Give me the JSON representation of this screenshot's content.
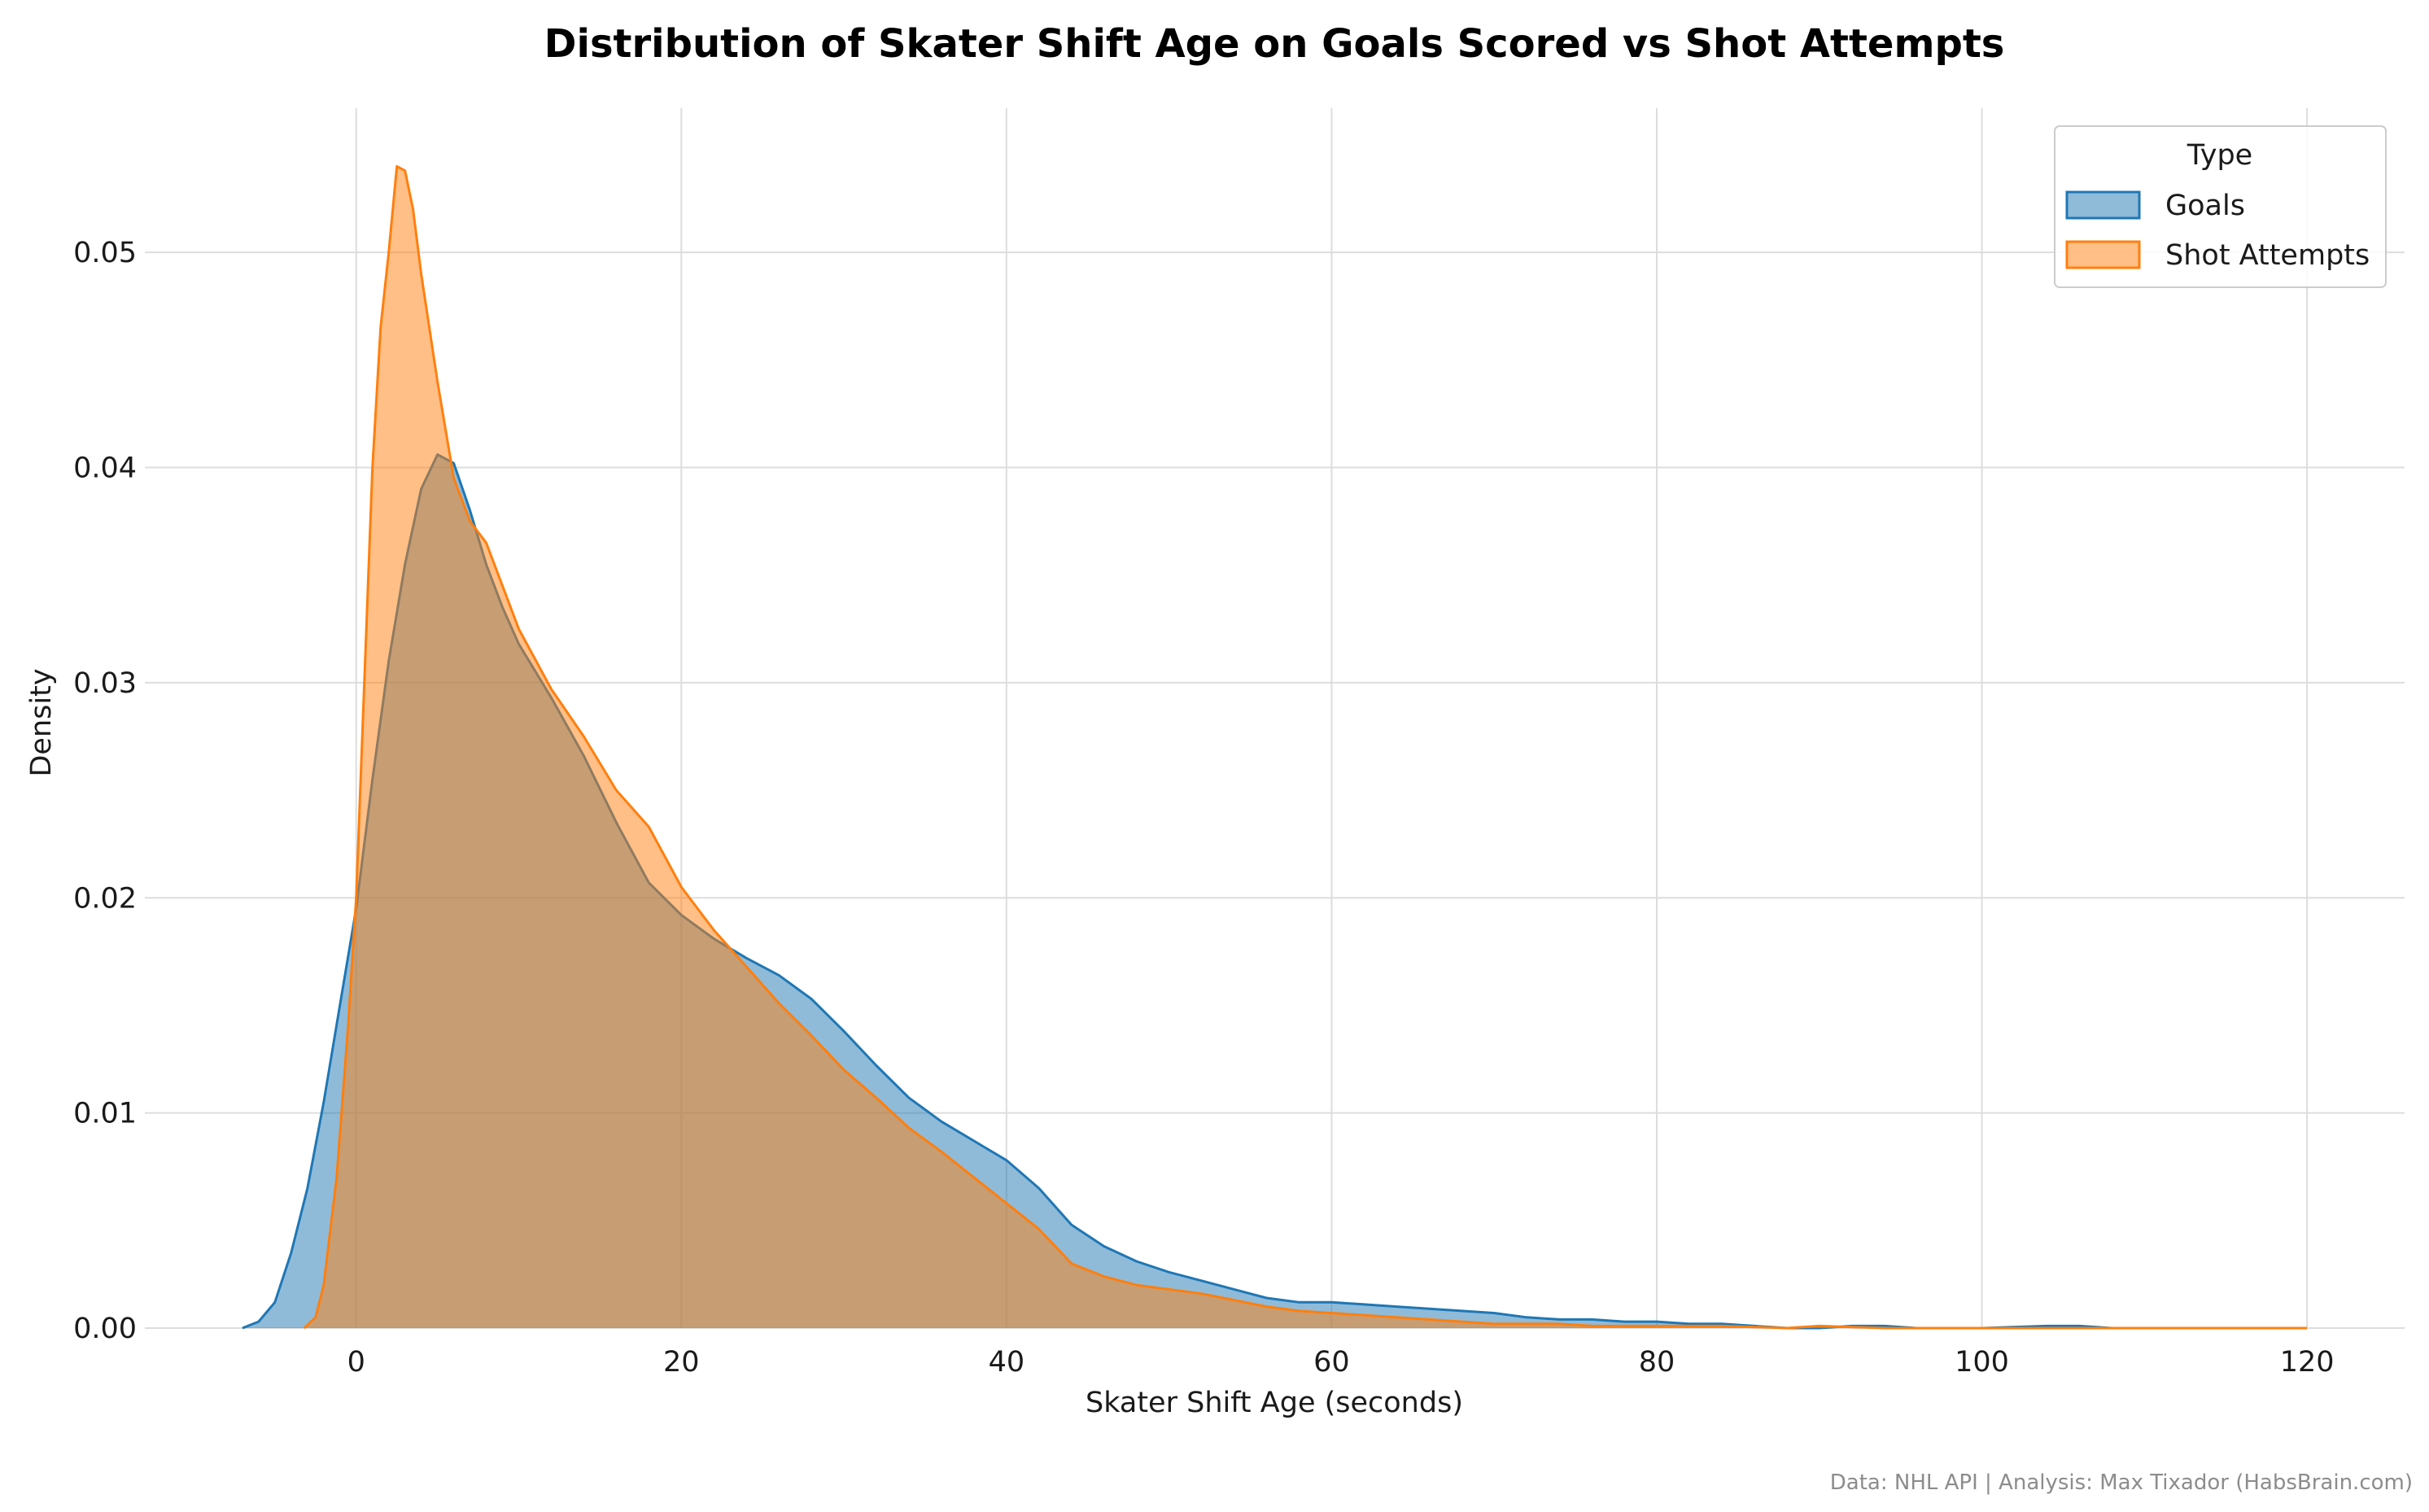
{
  "chart_data": {
    "type": "area",
    "title": "Distribution of Skater Shift Age on Goals Scored vs Shot Attempts",
    "xlabel": "Skater Shift Age (seconds)",
    "ylabel": "Density",
    "xlim": [
      -13,
      126
    ],
    "ylim": [
      0,
      0.0567
    ],
    "x_ticks": [
      0,
      20,
      40,
      60,
      80,
      100,
      120
    ],
    "y_ticks": [
      0.0,
      0.01,
      0.02,
      0.03,
      0.04,
      0.05
    ],
    "x_tick_labels": [
      "0",
      "20",
      "40",
      "60",
      "80",
      "100",
      "120"
    ],
    "y_tick_labels": [
      "0.00",
      "0.01",
      "0.02",
      "0.03",
      "0.04",
      "0.05"
    ],
    "grid": true,
    "legend": {
      "title": "Type",
      "placement": "top-right",
      "entries": [
        "Goals",
        "Shot Attempts"
      ]
    },
    "credit": "Data: NHL API | Analysis: Max Tixador (HabsBrain.com)",
    "series": [
      {
        "name": "Goals",
        "line_color": "#1f77b4",
        "fill_color": "#1f77b4",
        "points": [
          [
            -7,
            0.0
          ],
          [
            -6,
            0.0003
          ],
          [
            -5,
            0.0012
          ],
          [
            -4,
            0.0035
          ],
          [
            -3,
            0.0065
          ],
          [
            -2,
            0.0105
          ],
          [
            -1,
            0.015
          ],
          [
            0,
            0.0195
          ],
          [
            1,
            0.0255
          ],
          [
            2,
            0.031
          ],
          [
            3,
            0.0355
          ],
          [
            4,
            0.039
          ],
          [
            5,
            0.0406
          ],
          [
            6,
            0.0402
          ],
          [
            7,
            0.038
          ],
          [
            8,
            0.0355
          ],
          [
            9,
            0.0335
          ],
          [
            10,
            0.0318
          ],
          [
            12,
            0.0293
          ],
          [
            14,
            0.0266
          ],
          [
            16,
            0.0235
          ],
          [
            18,
            0.0207
          ],
          [
            20,
            0.0192
          ],
          [
            22,
            0.0181
          ],
          [
            24,
            0.0172
          ],
          [
            26,
            0.0164
          ],
          [
            28,
            0.0153
          ],
          [
            30,
            0.0138
          ],
          [
            32,
            0.0122
          ],
          [
            34,
            0.0107
          ],
          [
            36,
            0.0096
          ],
          [
            38,
            0.0087
          ],
          [
            40,
            0.0078
          ],
          [
            42,
            0.0065
          ],
          [
            44,
            0.0048
          ],
          [
            46,
            0.0038
          ],
          [
            48,
            0.0031
          ],
          [
            50,
            0.0026
          ],
          [
            52,
            0.0022
          ],
          [
            54,
            0.0018
          ],
          [
            56,
            0.0014
          ],
          [
            58,
            0.0012
          ],
          [
            60,
            0.0012
          ],
          [
            62,
            0.0011
          ],
          [
            64,
            0.001
          ],
          [
            66,
            0.0009
          ],
          [
            68,
            0.0008
          ],
          [
            70,
            0.0007
          ],
          [
            72,
            0.0005
          ],
          [
            74,
            0.0004
          ],
          [
            76,
            0.0004
          ],
          [
            78,
            0.0003
          ],
          [
            80,
            0.0003
          ],
          [
            82,
            0.0002
          ],
          [
            84,
            0.0002
          ],
          [
            86,
            0.0001
          ],
          [
            88,
            0.0
          ],
          [
            90,
            0.0
          ],
          [
            92,
            0.0001
          ],
          [
            94,
            0.0001
          ],
          [
            96,
            0.0
          ],
          [
            100,
            0.0
          ],
          [
            104,
            0.0001
          ],
          [
            106,
            0.0001
          ],
          [
            108,
            0.0
          ],
          [
            113,
            0.0
          ]
        ]
      },
      {
        "name": "Shot Attempts",
        "line_color": "#ff7f0e",
        "fill_color": "#ff7f0e",
        "points": [
          [
            -3.2,
            0.0
          ],
          [
            -2.5,
            0.0005
          ],
          [
            -2,
            0.002
          ],
          [
            -1.2,
            0.007
          ],
          [
            -0.5,
            0.014
          ],
          [
            0,
            0.02
          ],
          [
            0.5,
            0.03
          ],
          [
            1,
            0.04
          ],
          [
            1.5,
            0.0465
          ],
          [
            2,
            0.05
          ],
          [
            2.5,
            0.054
          ],
          [
            3,
            0.0538
          ],
          [
            3.5,
            0.052
          ],
          [
            4,
            0.049
          ],
          [
            5,
            0.044
          ],
          [
            6,
            0.0395
          ],
          [
            7,
            0.0375
          ],
          [
            8,
            0.0365
          ],
          [
            9,
            0.0345
          ],
          [
            10,
            0.0325
          ],
          [
            12,
            0.0297
          ],
          [
            14,
            0.0275
          ],
          [
            16,
            0.025
          ],
          [
            18,
            0.0233
          ],
          [
            20,
            0.0205
          ],
          [
            22,
            0.0185
          ],
          [
            24,
            0.0168
          ],
          [
            26,
            0.0151
          ],
          [
            28,
            0.0136
          ],
          [
            30,
            0.012
          ],
          [
            32,
            0.0107
          ],
          [
            34,
            0.0093
          ],
          [
            36,
            0.0082
          ],
          [
            38,
            0.007
          ],
          [
            40,
            0.0058
          ],
          [
            42,
            0.0046
          ],
          [
            44,
            0.003
          ],
          [
            46,
            0.0024
          ],
          [
            48,
            0.002
          ],
          [
            50,
            0.0018
          ],
          [
            52,
            0.0016
          ],
          [
            54,
            0.0013
          ],
          [
            56,
            0.001
          ],
          [
            58,
            0.0008
          ],
          [
            60,
            0.0007
          ],
          [
            62,
            0.0006
          ],
          [
            64,
            0.0005
          ],
          [
            66,
            0.0004
          ],
          [
            68,
            0.0003
          ],
          [
            70,
            0.0002
          ],
          [
            72,
            0.0002
          ],
          [
            74,
            0.0002
          ],
          [
            76,
            0.0001
          ],
          [
            80,
            0.0001
          ],
          [
            84,
            0.0001
          ],
          [
            88,
            0.0
          ],
          [
            90,
            0.0001
          ],
          [
            94,
            0.0
          ],
          [
            100,
            0.0
          ],
          [
            110,
            0.0
          ],
          [
            120,
            0.0
          ]
        ]
      }
    ]
  }
}
